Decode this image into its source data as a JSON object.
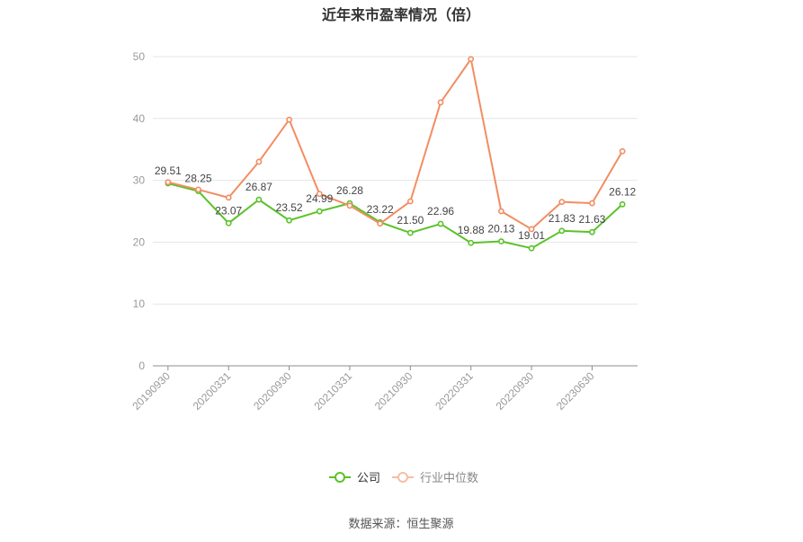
{
  "source_note": "数据来源：恒生聚源",
  "chart_data": {
    "type": "line",
    "title": "近年来市盈率情况（倍）",
    "xlabel": "",
    "ylabel": "",
    "categories": [
      "20190930",
      "",
      "20200331",
      "",
      "20200930",
      "",
      "20210331",
      "",
      "20210930",
      "",
      "20220331",
      "",
      "20220930",
      "",
      "20230630",
      ""
    ],
    "ylim": [
      0,
      50
    ],
    "y_ticks": [
      0,
      10,
      20,
      30,
      40,
      50
    ],
    "grid": true,
    "legend_position": "bottom",
    "series": [
      {
        "name": "公司",
        "color": "#5bc22a",
        "legend_text_color": "#333333",
        "data_labels": true,
        "values": [
          29.51,
          28.25,
          23.07,
          26.87,
          23.52,
          24.99,
          26.28,
          23.22,
          21.5,
          22.96,
          19.88,
          20.13,
          19.01,
          21.83,
          21.63,
          26.12
        ]
      },
      {
        "name": "行业中位数",
        "color": "#f28d62",
        "legend_color": "#f6bea4",
        "legend_text_color": "#888888",
        "data_labels": false,
        "values": [
          29.7,
          28.5,
          27.2,
          33.0,
          39.8,
          27.8,
          25.9,
          23.0,
          26.6,
          42.6,
          49.6,
          25.0,
          22.1,
          26.5,
          26.3,
          34.7
        ]
      }
    ]
  }
}
